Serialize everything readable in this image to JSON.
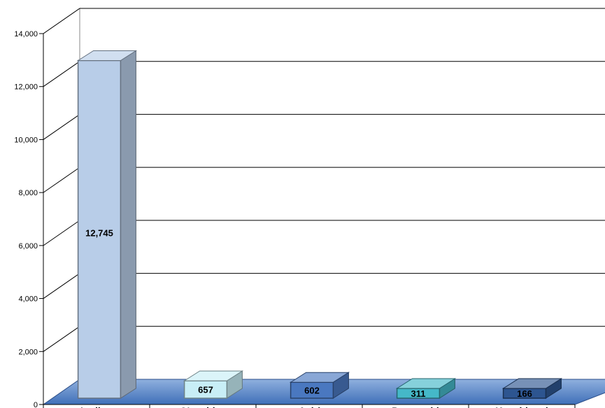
{
  "chart_data": {
    "type": "bar",
    "title": "",
    "xlabel": "",
    "ylabel": "",
    "categories": [
      "Ladino",
      "Q'eqchies",
      "Achí",
      "Poqomchi",
      "Kaqchiquel"
    ],
    "values": [
      12745,
      657,
      602,
      311,
      166
    ],
    "data_labels": [
      "12,745",
      "657",
      "602",
      "311",
      "166"
    ],
    "ylim": [
      0,
      14000
    ],
    "yticks": [
      0,
      2000,
      4000,
      6000,
      8000,
      10000,
      12000,
      14000
    ],
    "ytick_labels": [
      "0",
      "2,000",
      "4,000",
      "6,000",
      "8,000",
      "10,000",
      "12,000",
      "14,000"
    ],
    "grid": true,
    "legend": "none",
    "style": "3d-column",
    "colors": {
      "floor": "#4a7bc4",
      "grid": "#000000",
      "bars": [
        "#b8cde8",
        "#c8eef6",
        "#4a78c0",
        "#45b8c8",
        "#2d5590"
      ]
    }
  }
}
